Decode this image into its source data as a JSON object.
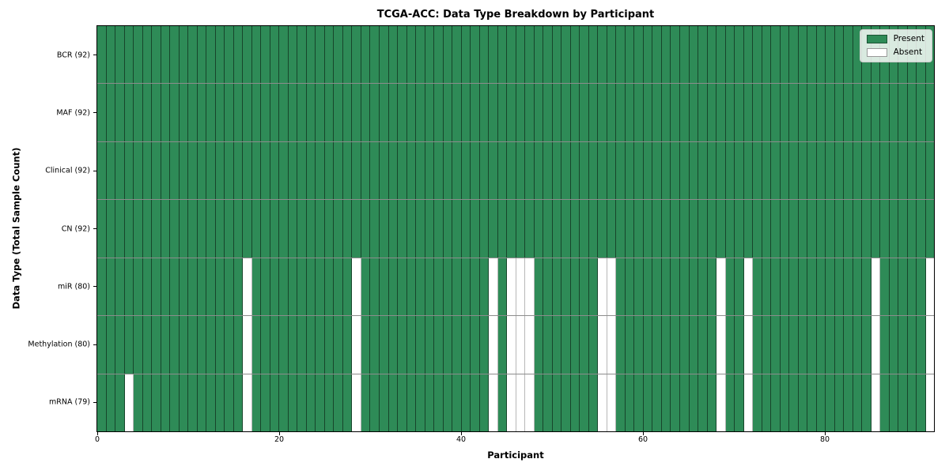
{
  "chart_data": {
    "type": "heatmap",
    "title": "TCGA-ACC: Data Type Breakdown by Participant",
    "xlabel": "Participant",
    "ylabel": "Data Type (Total Sample Count)",
    "n_participants": 92,
    "x_range": [
      0,
      92
    ],
    "x_ticks": [
      0,
      20,
      40,
      60,
      80
    ],
    "grid": false,
    "legend": {
      "position": "upper right",
      "entries": [
        {
          "label": "Present",
          "color": "#2e8b57"
        },
        {
          "label": "Absent",
          "color": "#ffffff"
        }
      ]
    },
    "rows": [
      {
        "label": "BCR (92)",
        "data_type": "BCR",
        "present_count": 92,
        "absent_participants": []
      },
      {
        "label": "MAF (92)",
        "data_type": "MAF",
        "present_count": 92,
        "absent_participants": []
      },
      {
        "label": "Clinical (92)",
        "data_type": "Clinical",
        "present_count": 92,
        "absent_participants": []
      },
      {
        "label": "CN (92)",
        "data_type": "CN",
        "present_count": 92,
        "absent_participants": []
      },
      {
        "label": "miR (80)",
        "data_type": "miR",
        "present_count": 80,
        "absent_participants": [
          16,
          28,
          43,
          45,
          46,
          47,
          55,
          56,
          68,
          71,
          85,
          91
        ]
      },
      {
        "label": "Methylation (80)",
        "data_type": "Methylation",
        "present_count": 80,
        "absent_participants": [
          16,
          28,
          43,
          45,
          46,
          47,
          55,
          56,
          68,
          71,
          85,
          91
        ]
      },
      {
        "label": "mRNA (79)",
        "data_type": "mRNA",
        "present_count": 79,
        "absent_participants": [
          3,
          16,
          28,
          43,
          45,
          46,
          47,
          55,
          56,
          68,
          71,
          85,
          91
        ]
      }
    ]
  }
}
